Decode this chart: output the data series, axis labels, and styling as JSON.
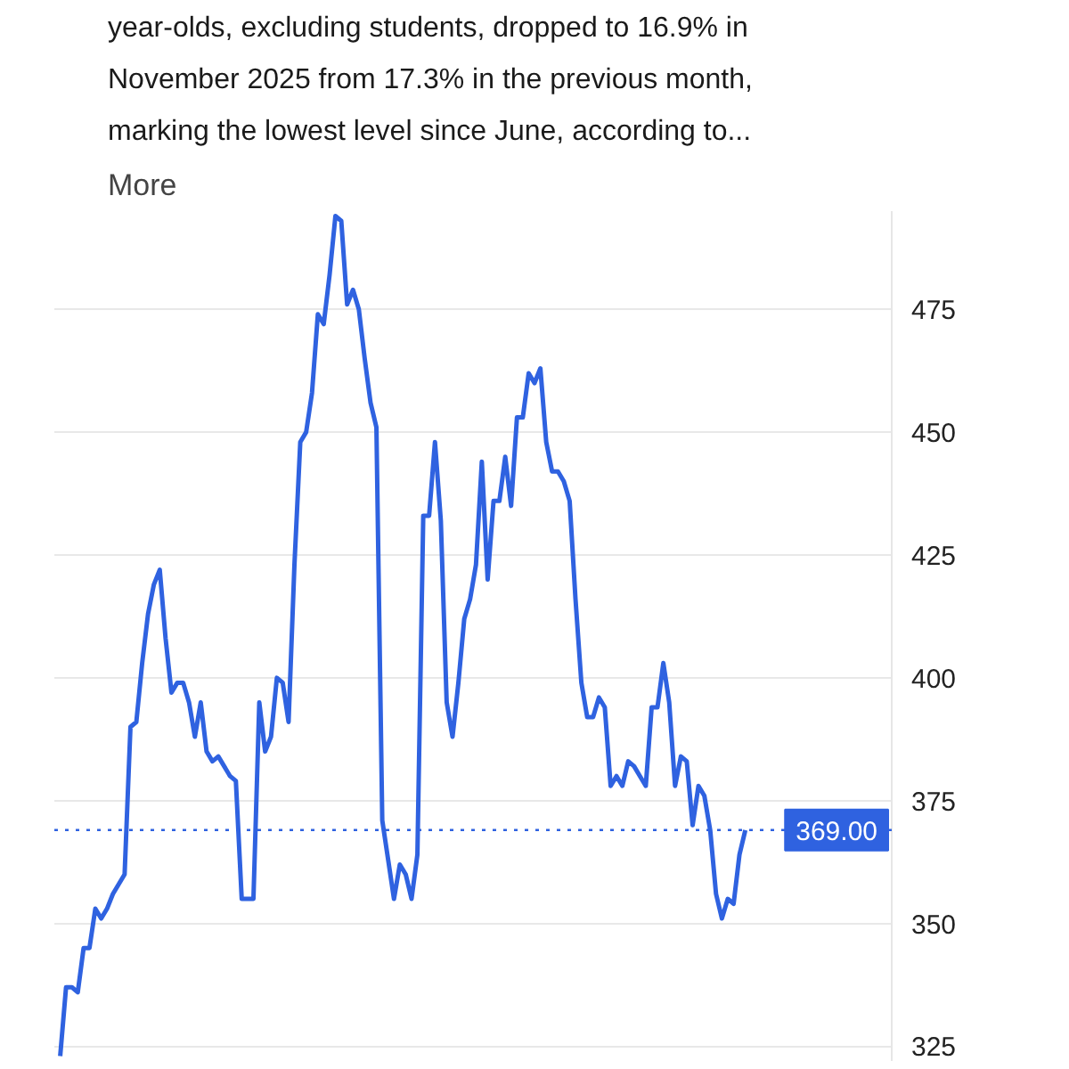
{
  "chart_data": {
    "type": "line",
    "subtitle": "year-olds, excluding students, dropped to 16.9% in November 2025 from 17.3% in the previous month, marking the lowest level since June, according to...",
    "annotations": [
      "More"
    ],
    "categories": [
      null,
      null,
      null,
      null,
      null,
      null,
      null,
      null,
      null,
      null,
      null,
      null,
      null,
      null,
      null,
      null,
      null,
      null,
      null,
      null,
      null,
      null,
      null,
      null,
      null,
      null,
      null,
      null,
      null,
      null,
      null,
      null,
      null,
      null,
      null,
      null,
      null,
      null,
      null,
      null,
      null,
      null,
      null,
      null,
      null,
      null,
      null,
      null,
      null,
      null,
      null,
      null,
      null,
      null,
      null,
      null,
      null,
      null,
      null,
      null,
      null,
      null,
      null,
      null,
      null,
      null,
      null,
      null,
      null,
      null,
      null,
      null,
      null,
      null,
      null,
      null,
      null,
      null,
      null,
      null,
      null,
      null,
      null,
      null,
      null,
      null,
      null,
      null,
      null,
      null,
      null,
      null,
      null,
      null,
      null,
      null,
      null,
      null,
      null,
      null,
      null,
      null,
      null,
      null,
      null,
      null,
      null,
      null,
      null,
      null,
      null,
      null,
      null,
      null,
      null,
      null,
      null,
      null
    ],
    "series": [
      {
        "color": "#2f62e0",
        "values": [
          323,
          337,
          337,
          336,
          345,
          345,
          353,
          351,
          353,
          356,
          358,
          360,
          390,
          391,
          403,
          413,
          419,
          422,
          408,
          397,
          399,
          399,
          395,
          388,
          395,
          385,
          383,
          384,
          382,
          380,
          379,
          355,
          355,
          355,
          395,
          385,
          388,
          400,
          399,
          391,
          423,
          448,
          450,
          458,
          474,
          472,
          482,
          494,
          493,
          476,
          479,
          475,
          465,
          456,
          451,
          371,
          363,
          355,
          362,
          360,
          355,
          364,
          433,
          433,
          448,
          432,
          395,
          388,
          399,
          412,
          416,
          423,
          444,
          420,
          436,
          436,
          445,
          435,
          453,
          453,
          462,
          460,
          463,
          448,
          442,
          442,
          440,
          436,
          416,
          399,
          392,
          392,
          396,
          394,
          378,
          380,
          378,
          383,
          382,
          380,
          378,
          394,
          394,
          403,
          395,
          378,
          384,
          383,
          370,
          378,
          376,
          369,
          356,
          351,
          355,
          354,
          364,
          369
        ]
      }
    ],
    "ylim": [
      322,
      495
    ],
    "yticks": [
      325,
      350,
      375,
      400,
      425,
      450,
      475
    ],
    "grid": "y",
    "line_style": "solid",
    "marker": "none",
    "ref_lines": [
      {
        "axis": "y",
        "value": 369,
        "label": "369.00",
        "color": "#2f62e0",
        "line_style": "dotted"
      }
    ]
  }
}
